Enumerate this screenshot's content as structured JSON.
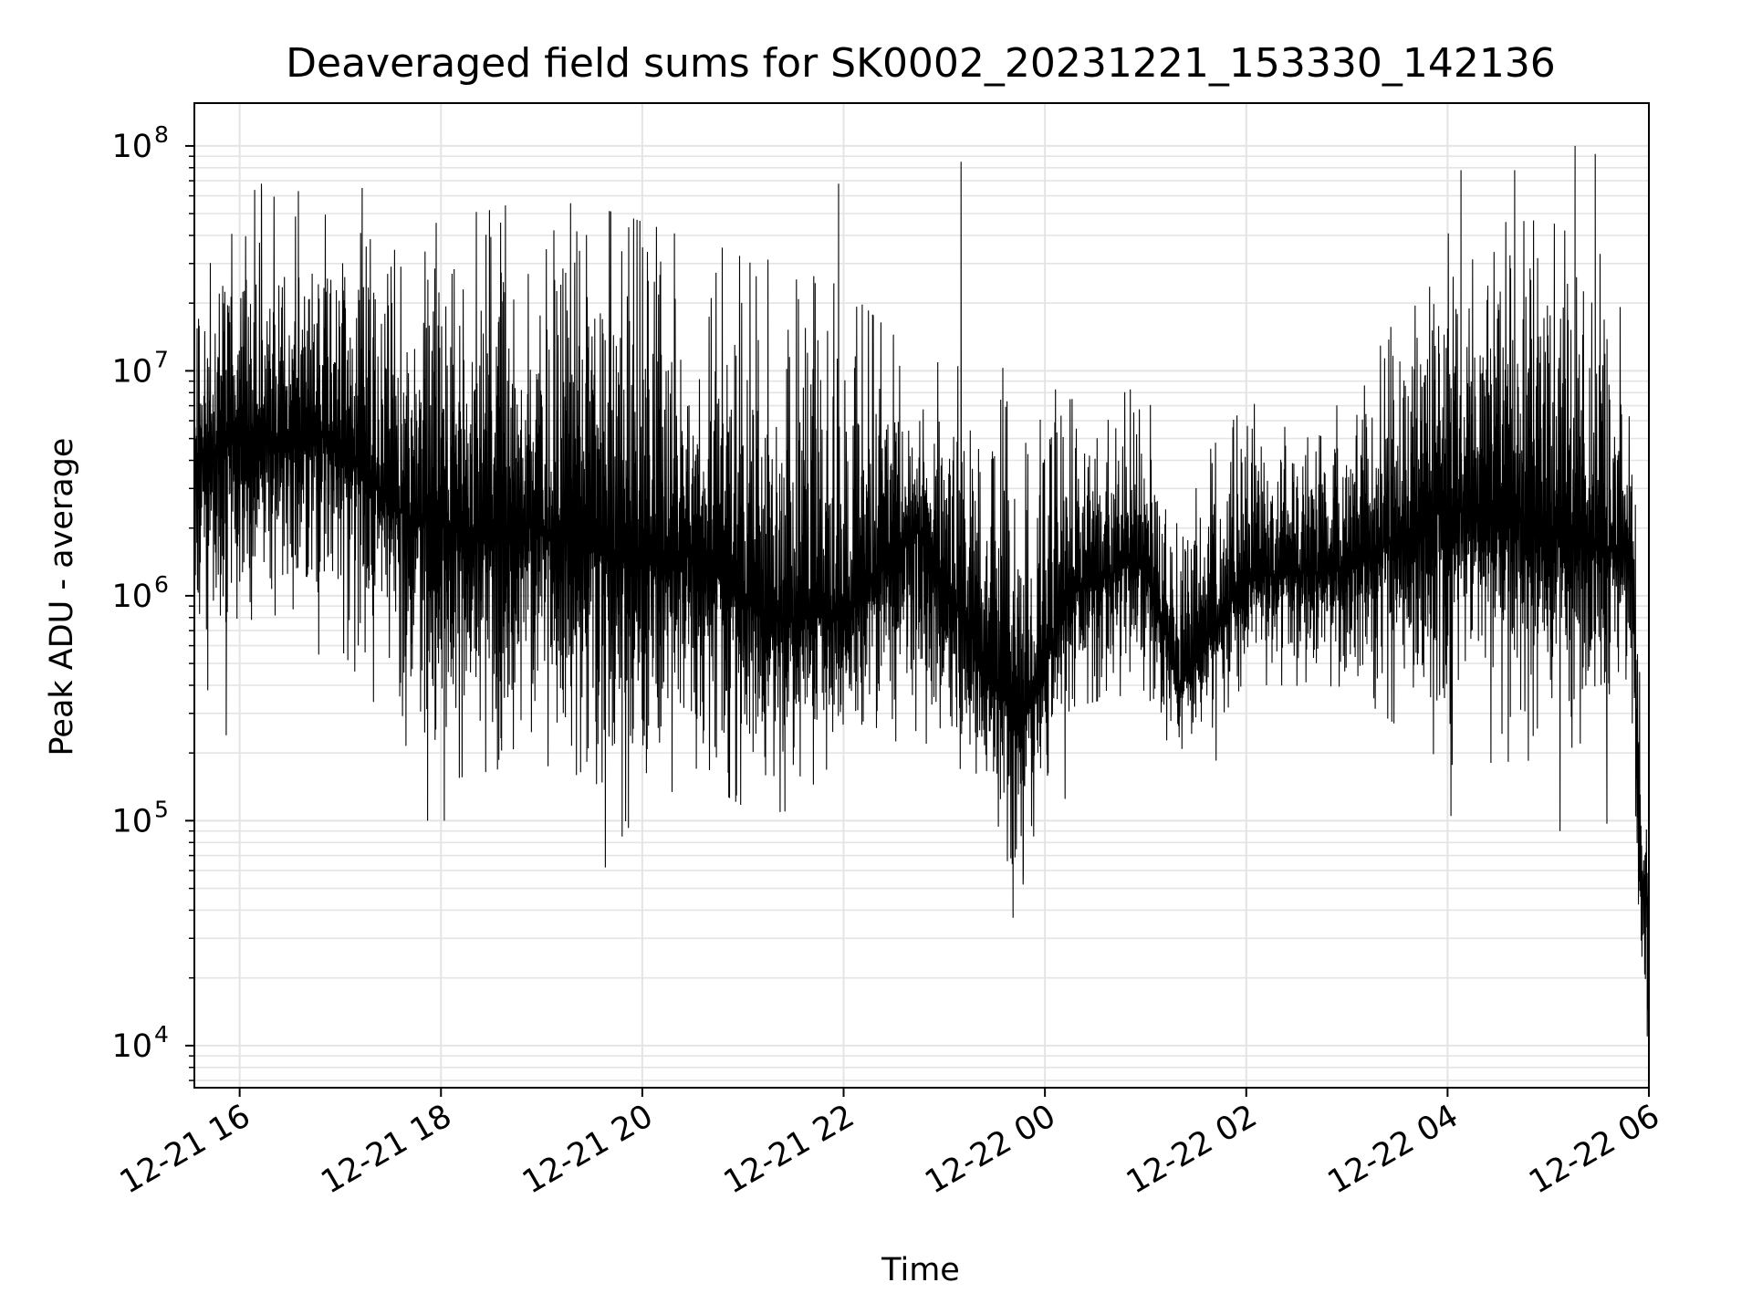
{
  "chart_data": {
    "type": "line",
    "title": "Deaveraged field sums for SK0002_20231221_153330_142136",
    "xlabel": "Time",
    "ylabel": "Peak ADU - average",
    "yscale": "log",
    "grid": true,
    "legend": "none",
    "colors": {
      "line": "#000000",
      "grid": "#e4e4e4",
      "axes": "#000000"
    },
    "xlim": [
      "2023-12-21 15:33",
      "2023-12-22 06:00"
    ],
    "ylim": [
      6500,
      155000000
    ],
    "x_ticks": [
      {
        "at": "2023-12-21 16:00",
        "label": "12-21 16"
      },
      {
        "at": "2023-12-21 18:00",
        "label": "12-21 18"
      },
      {
        "at": "2023-12-21 20:00",
        "label": "12-21 20"
      },
      {
        "at": "2023-12-21 22:00",
        "label": "12-21 22"
      },
      {
        "at": "2023-12-22 00:00",
        "label": "12-22 00"
      },
      {
        "at": "2023-12-22 02:00",
        "label": "12-22 02"
      },
      {
        "at": "2023-12-22 04:00",
        "label": "12-22 04"
      },
      {
        "at": "2023-12-22 06:00",
        "label": "12-22 06"
      }
    ],
    "y_ticks": [
      {
        "value": 10000,
        "base": "10",
        "exp": "4"
      },
      {
        "value": 100000,
        "base": "10",
        "exp": "5"
      },
      {
        "value": 1000000,
        "base": "10",
        "exp": "6"
      },
      {
        "value": 10000000,
        "base": "10",
        "exp": "7"
      },
      {
        "value": 100000000,
        "base": "10",
        "exp": "8"
      }
    ],
    "envelope": [
      {
        "t": "2023-12-21 15:33",
        "median": 4000000,
        "low": 600000,
        "high": 25000000
      },
      {
        "t": "2023-12-21 16:00",
        "median": 5000000,
        "low": 700000,
        "high": 40000000
      },
      {
        "t": "2023-12-21 17:00",
        "median": 5000000,
        "low": 900000,
        "high": 30000000
      },
      {
        "t": "2023-12-21 17:30",
        "median": 2500000,
        "low": 400000,
        "high": 20000000
      },
      {
        "t": "2023-12-21 18:00",
        "median": 2000000,
        "low": 250000,
        "high": 25000000
      },
      {
        "t": "2023-12-21 19:00",
        "median": 2000000,
        "low": 300000,
        "high": 30000000
      },
      {
        "t": "2023-12-21 19:45",
        "median": 1500000,
        "low": 150000,
        "high": 25000000
      },
      {
        "t": "2023-12-21 20:30",
        "median": 1500000,
        "low": 250000,
        "high": 20000000
      },
      {
        "t": "2023-12-21 21:15",
        "median": 800000,
        "low": 150000,
        "high": 15000000
      },
      {
        "t": "2023-12-21 22:00",
        "median": 800000,
        "low": 250000,
        "high": 12000000
      },
      {
        "t": "2023-12-21 22:45",
        "median": 2000000,
        "low": 300000,
        "high": 8000000
      },
      {
        "t": "2023-12-21 23:15",
        "median": 700000,
        "low": 200000,
        "high": 6000000
      },
      {
        "t": "2023-12-21 23:45",
        "median": 250000,
        "low": 70000,
        "high": 5000000
      },
      {
        "t": "2023-12-22 00:15",
        "median": 1000000,
        "low": 400000,
        "high": 5000000
      },
      {
        "t": "2023-12-22 01:00",
        "median": 1500000,
        "low": 500000,
        "high": 6000000
      },
      {
        "t": "2023-12-22 01:20",
        "median": 400000,
        "low": 200000,
        "high": 2000000
      },
      {
        "t": "2023-12-22 02:00",
        "median": 1200000,
        "low": 500000,
        "high": 5000000
      },
      {
        "t": "2023-12-22 03:00",
        "median": 1300000,
        "low": 500000,
        "high": 5000000
      },
      {
        "t": "2023-12-22 04:00",
        "median": 2500000,
        "low": 300000,
        "high": 25000000
      },
      {
        "t": "2023-12-22 05:00",
        "median": 2000000,
        "low": 300000,
        "high": 25000000
      },
      {
        "t": "2023-12-22 05:50",
        "median": 1500000,
        "low": 400000,
        "high": 15000000
      },
      {
        "t": "2023-12-22 05:55",
        "median": 60000,
        "low": 15000,
        "high": 200000
      },
      {
        "t": "2023-12-22 06:00",
        "median": 40000,
        "low": 12000,
        "high": 100000
      }
    ],
    "spikes": [
      {
        "t": "2023-12-21 15:41",
        "value": 380000
      },
      {
        "t": "2023-12-21 15:52",
        "value": 240000
      },
      {
        "t": "2023-12-21 16:13",
        "value": 68000000
      },
      {
        "t": "2023-12-21 16:35",
        "value": 63000000
      },
      {
        "t": "2023-12-21 17:13",
        "value": 65000000
      },
      {
        "t": "2023-12-21 17:52",
        "value": 100000
      },
      {
        "t": "2023-12-21 18:02",
        "value": 100000
      },
      {
        "t": "2023-12-21 19:38",
        "value": 62000
      },
      {
        "t": "2023-12-21 19:48",
        "value": 85000
      },
      {
        "t": "2023-12-21 21:25",
        "value": 110000
      },
      {
        "t": "2023-12-21 21:57",
        "value": 68000000
      },
      {
        "t": "2023-12-21 23:10",
        "value": 85000000
      },
      {
        "t": "2023-12-21 23:41",
        "value": 37000
      },
      {
        "t": "2023-12-21 23:47",
        "value": 52000
      },
      {
        "t": "2023-12-22 00:12",
        "value": 125000
      },
      {
        "t": "2023-12-22 01:42",
        "value": 185000
      },
      {
        "t": "2023-12-22 04:02",
        "value": 105000
      },
      {
        "t": "2023-12-22 04:08",
        "value": 78000000
      },
      {
        "t": "2023-12-22 04:40",
        "value": 78000000
      },
      {
        "t": "2023-12-22 05:07",
        "value": 90000
      },
      {
        "t": "2023-12-22 05:16",
        "value": 100000000
      },
      {
        "t": "2023-12-22 05:28",
        "value": 92000000
      },
      {
        "t": "2023-12-22 05:35",
        "value": 97000
      },
      {
        "t": "2023-12-22 05:59",
        "value": 11000
      }
    ]
  }
}
